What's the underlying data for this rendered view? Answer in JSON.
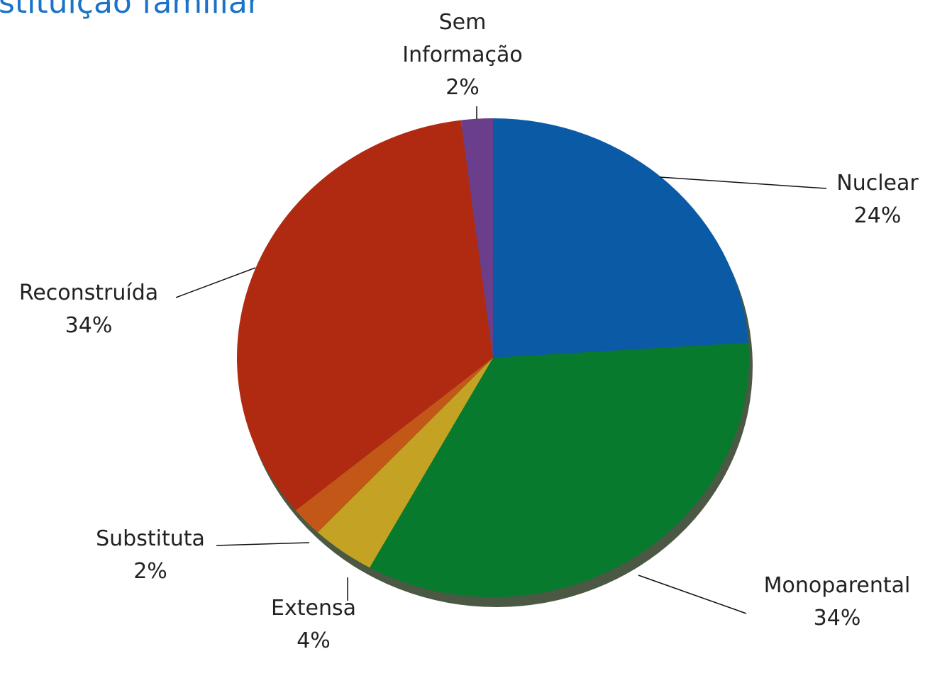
{
  "chart_data": {
    "type": "pie",
    "title": "stituição familiar",
    "categories": [
      "Nuclear",
      "Monoparental",
      "Extensa",
      "Substituta",
      "Reconstruída",
      "Sem Informação"
    ],
    "values": [
      24,
      34,
      4,
      2,
      34,
      2
    ],
    "value_labels": [
      "24%",
      "34%",
      "4%",
      "2%",
      "34%",
      "2%"
    ],
    "colors": [
      "#0a5aa6",
      "#077a2e",
      "#c4a324",
      "#c25718",
      "#b02a12",
      "#6a3e8a"
    ]
  }
}
